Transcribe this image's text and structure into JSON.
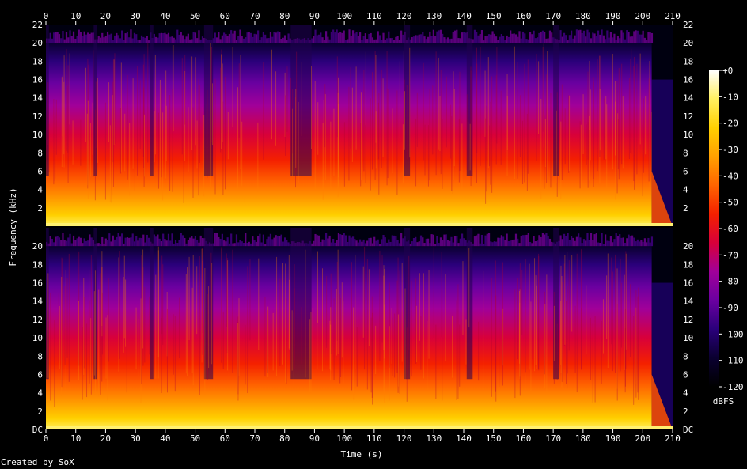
{
  "chart_data": {
    "type": "heatmap",
    "xlabel": "Time (s)",
    "ylabel": "Frequency (kHz)",
    "xlim": [
      0,
      210
    ],
    "x_ticks": [
      0,
      10,
      20,
      30,
      40,
      50,
      60,
      70,
      80,
      90,
      100,
      110,
      120,
      130,
      140,
      150,
      160,
      170,
      180,
      190,
      200,
      210
    ],
    "ylim_khz": [
      0,
      22
    ],
    "channels": [
      {
        "y_tick_values": [
          2,
          4,
          6,
          8,
          10,
          12,
          14,
          16,
          18,
          20,
          22
        ],
        "y_tick_labels": [
          "2",
          "4",
          "6",
          "8",
          "10",
          "12",
          "14",
          "16",
          "18",
          "20",
          "22"
        ]
      },
      {
        "y_tick_values": [
          0,
          2,
          4,
          6,
          8,
          10,
          12,
          14,
          16,
          18,
          20
        ],
        "y_tick_labels": [
          "DC",
          "2",
          "4",
          "6",
          "8",
          "10",
          "12",
          "14",
          "16",
          "18",
          "20"
        ]
      }
    ],
    "colorbar": {
      "unit": "dBFS",
      "range": [
        -120,
        0
      ],
      "tick_values": [
        0,
        -10,
        -20,
        -30,
        -40,
        -50,
        -60,
        -70,
        -80,
        -90,
        -100,
        -110,
        -120
      ],
      "tick_labels": [
        "+0",
        "-10",
        "-20",
        "-30",
        "-40",
        "-50",
        "-60",
        "-70",
        "-80",
        "-90",
        "-100",
        "-110",
        "-120"
      ]
    },
    "content": {
      "bandwidth_cutoff_khz": 20,
      "audio_end_s": 203,
      "quiet_sections_s": [
        [
          0,
          1
        ],
        [
          16,
          17
        ],
        [
          35,
          36
        ],
        [
          53,
          56
        ],
        [
          82,
          89
        ],
        [
          120,
          122
        ],
        [
          141,
          143
        ],
        [
          170,
          172
        ]
      ]
    },
    "colormap": [
      "#000000",
      "#0a0030",
      "#2a007a",
      "#6a00a0",
      "#a0009a",
      "#d8003a",
      "#f42000",
      "#ff6400",
      "#ffa000",
      "#ffd000",
      "#fff060",
      "#ffffff"
    ]
  },
  "footer": {
    "credit": "Created by SoX"
  }
}
